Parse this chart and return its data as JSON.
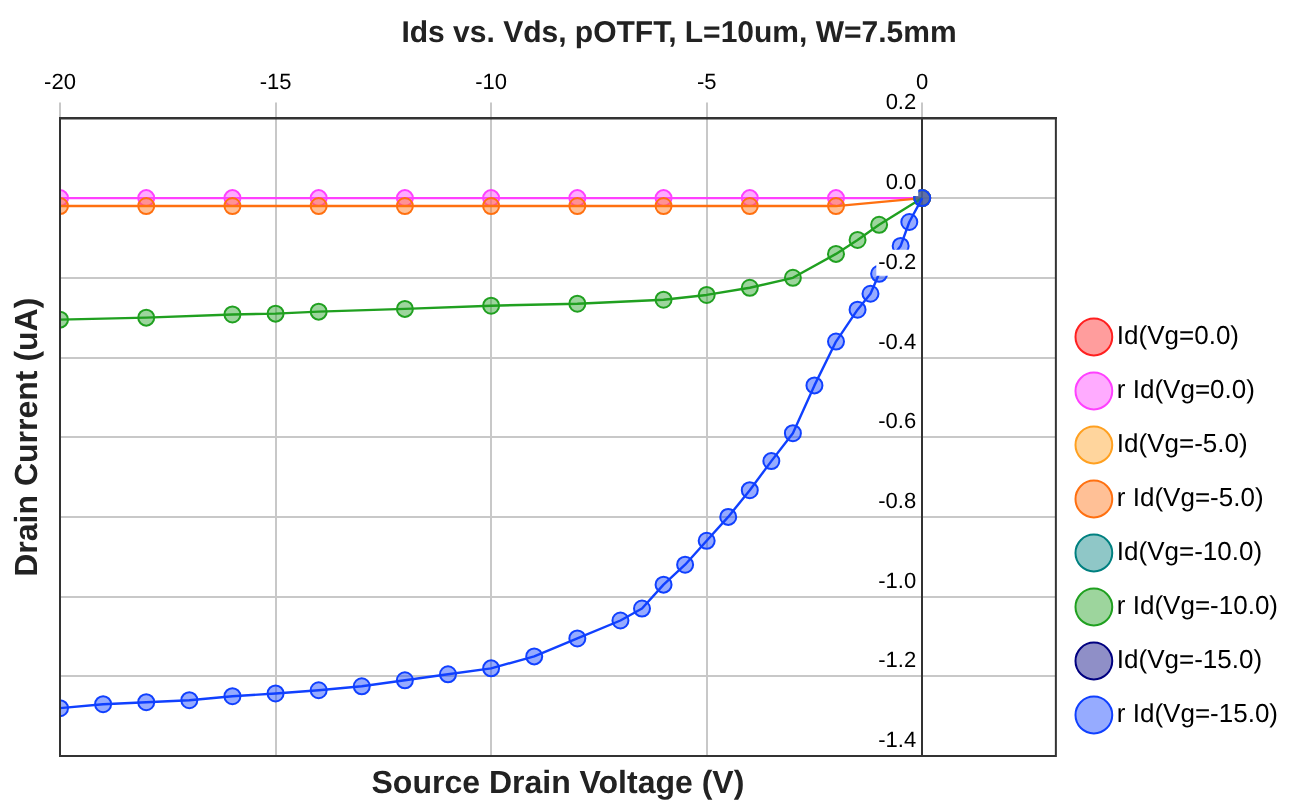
{
  "chart_data": {
    "type": "line",
    "title": "Ids vs. Vds, pOTFT, L=10um, W=7.5mm",
    "xlabel": "Source Drain Voltage (V)",
    "ylabel": "Drain Current (uA)",
    "xlim": [
      -20,
      3.1
    ],
    "xticks": [
      -20,
      -15,
      -10,
      -5,
      0
    ],
    "ylim": [
      -1.4,
      0.2
    ],
    "yticks": [
      -1.4,
      -1.2,
      {
        "value": -1.0,
        "label": "-1.0"
      },
      -0.8,
      -0.6,
      -0.4,
      -0.2,
      {
        "value": 0,
        "label": "0.0"
      },
      0.2
    ],
    "grid": true,
    "legend": "right",
    "marker": "circle",
    "series": [
      {
        "name": "Id(Vg=0.0)",
        "color": "#ff2020"
      },
      {
        "name": "r Id(Vg=0.0)",
        "color": "#ff40ff",
        "x": [
          -20,
          -18,
          -16,
          -14,
          -12,
          -10,
          -8,
          -6,
          -4,
          -2,
          0
        ],
        "values": [
          0,
          0,
          0,
          0,
          0,
          0,
          0,
          0,
          0,
          0,
          0
        ]
      },
      {
        "name": "Id(Vg=-5.0)",
        "color": "#ffa020"
      },
      {
        "name": "r Id(Vg=-5.0)",
        "color": "#ff7010",
        "x": [
          -20,
          -18,
          -16,
          -14,
          -12,
          -10,
          -8,
          -6,
          -4,
          -2,
          0
        ],
        "values": [
          -0.02,
          -0.02,
          -0.02,
          -0.02,
          -0.02,
          -0.02,
          -0.02,
          -0.02,
          -0.02,
          -0.02,
          0
        ]
      },
      {
        "name": "Id(Vg=-10.0)",
        "color": "#008080"
      },
      {
        "name": "r Id(Vg=-10.0)",
        "color": "#20a020",
        "x": [
          -20,
          -18,
          -16,
          -15,
          -14,
          -12,
          -10,
          -8,
          -6,
          -5,
          -4,
          -3,
          -2,
          -1.5,
          -1,
          0
        ],
        "values": [
          -0.305,
          -0.3,
          -0.292,
          -0.29,
          -0.285,
          -0.278,
          -0.27,
          -0.265,
          -0.255,
          -0.243,
          -0.225,
          -0.2,
          -0.14,
          -0.105,
          -0.067,
          0
        ]
      },
      {
        "name": "Id(Vg=-15.0)",
        "color": "#000080"
      },
      {
        "name": "r Id(Vg=-15.0)",
        "color": "#1040ff",
        "x": [
          -20,
          -19,
          -18,
          -17,
          -16,
          -15,
          -14,
          -13,
          -12,
          -11,
          -10,
          -9,
          -8,
          -7,
          -6.5,
          -6,
          -5.5,
          -5,
          -4.5,
          -4,
          -3.5,
          -3,
          -2.5,
          -2,
          -1.5,
          -1.2,
          -1,
          -0.5,
          -0.3,
          0
        ],
        "values": [
          -1.28,
          -1.27,
          -1.265,
          -1.26,
          -1.25,
          -1.243,
          -1.235,
          -1.225,
          -1.21,
          -1.195,
          -1.18,
          -1.15,
          -1.105,
          -1.06,
          -1.03,
          -0.97,
          -0.92,
          -0.86,
          -0.8,
          -0.733,
          -0.66,
          -0.59,
          -0.47,
          -0.36,
          -0.28,
          -0.24,
          -0.19,
          -0.12,
          -0.06,
          0
        ]
      }
    ]
  }
}
